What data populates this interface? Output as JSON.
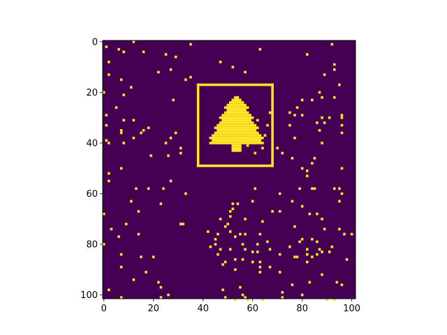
{
  "chart_data": {
    "type": "heatmap",
    "title": "",
    "xlabel": "",
    "ylabel": "",
    "grid": false,
    "image_shape": [
      102,
      102
    ],
    "xlim": [
      -0.5,
      101.5
    ],
    "ylim": [
      101.5,
      -0.5
    ],
    "xticks": [
      0,
      20,
      40,
      60,
      80,
      100
    ],
    "yticks": [
      0,
      20,
      40,
      60,
      80,
      100
    ],
    "colors": {
      "background": "#440154",
      "foreground": "#fde725",
      "axes": "#000000"
    },
    "tree": {
      "rows": [
        {
          "y": 22,
          "x0": 53,
          "x1": 54
        },
        {
          "y": 23,
          "x0": 52,
          "x1": 55
        },
        {
          "y": 24,
          "x0": 51,
          "x1": 56
        },
        {
          "y": 25,
          "x0": 50,
          "x1": 57
        },
        {
          "y": 26,
          "x0": 49,
          "x1": 58
        },
        {
          "y": 27,
          "x0": 50,
          "x1": 57
        },
        {
          "y": 28,
          "x0": 49,
          "x1": 58
        },
        {
          "y": 29,
          "x0": 48,
          "x1": 59
        },
        {
          "y": 30,
          "x0": 47,
          "x1": 60
        },
        {
          "y": 31,
          "x0": 48,
          "x1": 59
        },
        {
          "y": 32,
          "x0": 47,
          "x1": 60
        },
        {
          "y": 33,
          "x0": 46,
          "x1": 61
        },
        {
          "y": 34,
          "x0": 45,
          "x1": 62
        },
        {
          "y": 35,
          "x0": 46,
          "x1": 61
        },
        {
          "y": 36,
          "x0": 45,
          "x1": 62
        },
        {
          "y": 37,
          "x0": 44,
          "x1": 63
        },
        {
          "y": 38,
          "x0": 43,
          "x1": 64
        },
        {
          "y": 39,
          "x0": 44,
          "x1": 63
        },
        {
          "y": 40,
          "x0": 43,
          "x1": 64
        },
        {
          "y": 41,
          "x0": 52,
          "x1": 55
        },
        {
          "y": 42,
          "x0": 52,
          "x1": 55
        },
        {
          "y": 43,
          "x0": 52,
          "x1": 55
        }
      ]
    },
    "frame": {
      "x0": 38,
      "x1": 68,
      "y0": 17,
      "y1": 49
    },
    "points": [
      [
        1,
        2
      ],
      [
        6,
        3
      ],
      [
        8,
        4
      ],
      [
        12,
        0
      ],
      [
        16,
        4
      ],
      [
        25,
        5
      ],
      [
        29,
        6
      ],
      [
        35,
        1
      ],
      [
        47,
        8
      ],
      [
        52,
        10
      ],
      [
        57,
        12
      ],
      [
        63,
        3
      ],
      [
        82,
        5
      ],
      [
        92,
        1
      ],
      [
        93,
        9
      ],
      [
        93,
        11
      ],
      [
        89,
        13
      ],
      [
        95,
        17
      ],
      [
        2,
        8
      ],
      [
        2,
        13
      ],
      [
        7,
        15
      ],
      [
        11,
        18
      ],
      [
        22,
        12
      ],
      [
        27,
        11
      ],
      [
        33,
        15
      ],
      [
        0,
        20
      ],
      [
        1,
        29
      ],
      [
        5,
        26
      ],
      [
        8,
        21
      ],
      [
        8,
        31
      ],
      [
        7,
        35
      ],
      [
        7,
        36
      ],
      [
        12,
        31
      ],
      [
        15,
        36
      ],
      [
        16,
        35
      ],
      [
        12,
        38
      ],
      [
        18,
        34
      ],
      [
        1,
        33
      ],
      [
        1,
        39
      ],
      [
        2,
        40
      ],
      [
        8,
        40
      ],
      [
        19,
        45
      ],
      [
        25,
        40
      ],
      [
        26,
        45
      ],
      [
        27,
        38
      ],
      [
        29,
        36
      ],
      [
        31,
        44
      ],
      [
        31,
        42
      ],
      [
        28,
        23
      ],
      [
        35,
        14
      ],
      [
        2,
        55
      ],
      [
        2,
        52
      ],
      [
        7,
        50
      ],
      [
        11,
        63
      ],
      [
        13,
        58
      ],
      [
        14,
        67
      ],
      [
        18,
        58
      ],
      [
        23,
        64
      ],
      [
        24,
        58
      ],
      [
        27,
        55
      ],
      [
        33,
        60
      ],
      [
        31,
        72
      ],
      [
        32,
        72
      ],
      [
        3,
        74
      ],
      [
        6,
        77
      ],
      [
        9,
        72
      ],
      [
        14,
        76
      ],
      [
        0,
        68
      ],
      [
        0,
        80
      ],
      [
        7,
        84
      ],
      [
        7,
        89
      ],
      [
        15,
        85
      ],
      [
        20,
        85
      ],
      [
        17,
        91
      ],
      [
        22,
        95
      ],
      [
        23,
        97
      ],
      [
        26,
        100
      ],
      [
        23,
        101
      ],
      [
        2,
        98
      ],
      [
        7,
        101
      ],
      [
        12,
        94
      ],
      [
        47,
        70
      ],
      [
        42,
        75
      ],
      [
        50,
        72
      ],
      [
        45,
        80
      ],
      [
        43,
        81
      ],
      [
        47,
        82
      ],
      [
        51,
        82
      ],
      [
        53,
        77
      ],
      [
        51,
        75
      ],
      [
        53,
        86
      ],
      [
        53,
        90
      ],
      [
        48,
        88
      ],
      [
        49,
        73
      ],
      [
        49,
        87
      ],
      [
        51,
        67
      ],
      [
        52,
        66
      ],
      [
        52,
        64
      ],
      [
        54,
        64
      ],
      [
        55,
        76
      ],
      [
        57,
        76
      ],
      [
        56,
        80
      ],
      [
        57,
        82
      ],
      [
        62,
        80
      ],
      [
        62,
        83
      ],
      [
        63,
        87
      ],
      [
        63,
        89
      ],
      [
        63,
        91
      ],
      [
        60,
        87
      ],
      [
        60,
        83
      ],
      [
        56,
        86
      ],
      [
        61,
        58
      ],
      [
        64,
        71
      ],
      [
        71,
        60
      ],
      [
        71,
        67
      ],
      [
        71,
        91
      ],
      [
        71,
        84
      ],
      [
        66,
        79
      ],
      [
        75,
        81
      ],
      [
        76,
        63
      ],
      [
        77,
        73
      ],
      [
        79,
        79
      ],
      [
        82,
        82
      ],
      [
        80,
        78
      ],
      [
        84,
        78
      ],
      [
        82,
        87
      ],
      [
        82,
        84
      ],
      [
        88,
        92
      ],
      [
        88,
        83
      ],
      [
        86,
        84
      ],
      [
        87,
        82
      ],
      [
        92,
        81
      ],
      [
        91,
        83
      ],
      [
        86,
        79
      ],
      [
        70,
        42
      ],
      [
        72,
        44
      ],
      [
        75,
        33
      ],
      [
        77,
        29
      ],
      [
        78,
        26
      ],
      [
        80,
        29
      ],
      [
        80,
        23
      ],
      [
        84,
        23
      ],
      [
        86,
        32
      ],
      [
        87,
        35
      ],
      [
        88,
        40
      ],
      [
        85,
        46
      ],
      [
        84,
        48
      ],
      [
        82,
        51
      ],
      [
        82,
        53
      ],
      [
        79,
        58
      ],
      [
        84,
        58
      ],
      [
        85,
        58
      ],
      [
        80,
        65
      ],
      [
        83,
        68
      ],
      [
        86,
        68
      ],
      [
        88,
        70
      ],
      [
        89,
        74
      ],
      [
        95,
        74
      ],
      [
        95,
        63
      ],
      [
        95,
        58
      ],
      [
        96,
        60
      ],
      [
        93,
        58
      ],
      [
        96,
        50
      ],
      [
        96,
        33
      ],
      [
        96,
        36
      ],
      [
        96,
        30
      ],
      [
        88,
        30
      ],
      [
        91,
        30
      ],
      [
        89,
        32
      ],
      [
        88,
        22
      ],
      [
        87,
        20
      ],
      [
        93,
        22
      ],
      [
        96,
        29
      ],
      [
        98,
        86
      ],
      [
        96,
        96
      ],
      [
        94,
        95
      ],
      [
        93,
        102
      ],
      [
        90,
        102
      ],
      [
        72,
        99
      ],
      [
        64,
        102
      ],
      [
        72,
        101
      ],
      [
        56,
        100
      ],
      [
        58,
        102
      ],
      [
        55,
        97
      ],
      [
        48,
        98
      ],
      [
        83,
        95
      ],
      [
        97,
        76
      ],
      [
        100,
        76
      ],
      [
        68,
        67
      ],
      [
        46,
        84
      ],
      [
        45,
        78
      ],
      [
        46,
        76
      ],
      [
        51,
        69
      ],
      [
        57,
        70
      ],
      [
        60,
        63
      ],
      [
        63,
        76
      ],
      [
        49,
        101
      ],
      [
        53,
        102
      ],
      [
        57,
        101
      ],
      [
        77,
        85
      ],
      [
        78,
        85
      ],
      [
        84,
        85
      ],
      [
        67,
        82
      ],
      [
        67,
        89
      ],
      [
        80,
        100
      ],
      [
        76,
        96
      ],
      [
        58,
        41
      ],
      [
        63,
        38
      ],
      [
        60,
        37
      ],
      [
        64,
        42
      ],
      [
        61,
        44
      ],
      [
        65,
        37
      ],
      [
        62,
        31
      ],
      [
        66,
        33
      ],
      [
        67,
        28
      ],
      [
        75,
        28
      ],
      [
        77,
        38
      ],
      [
        76,
        46
      ],
      [
        80,
        50
      ]
    ]
  }
}
